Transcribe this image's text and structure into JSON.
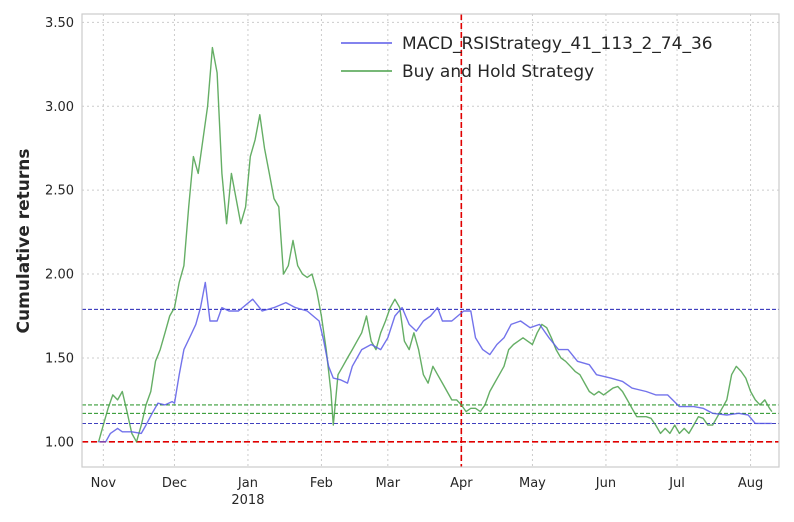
{
  "chart_data": {
    "type": "line",
    "ylabel": "Cumulative returns",
    "xlabel": "",
    "ylim": [
      0.85,
      3.55
    ],
    "x_range": [
      "2017-10-23",
      "2018-08-13"
    ],
    "x_ticks": [
      {
        "date": "2017-11-01",
        "label": "Nov"
      },
      {
        "date": "2017-12-01",
        "label": "Dec"
      },
      {
        "date": "2018-01-01",
        "label": "Jan",
        "sublabel": "2018"
      },
      {
        "date": "2018-02-01",
        "label": "Feb"
      },
      {
        "date": "2018-03-01",
        "label": "Mar"
      },
      {
        "date": "2018-04-01",
        "label": "Apr"
      },
      {
        "date": "2018-05-01",
        "label": "May"
      },
      {
        "date": "2018-06-01",
        "label": "Jun"
      },
      {
        "date": "2018-07-01",
        "label": "Jul"
      },
      {
        "date": "2018-08-01",
        "label": "Aug"
      }
    ],
    "y_ticks": [
      "1.00",
      "1.50",
      "2.00",
      "2.50",
      "3.00",
      "3.50"
    ],
    "grid": true,
    "legend_position": "top-right",
    "series": [
      {
        "name": "MACD_RSIStrategy_41_113_2_74_36",
        "color": "#5a5ae8",
        "points": [
          [
            "2017-10-30",
            1.0
          ],
          [
            "2017-11-02",
            1.0
          ],
          [
            "2017-11-04",
            1.05
          ],
          [
            "2017-11-07",
            1.08
          ],
          [
            "2017-11-09",
            1.06
          ],
          [
            "2017-11-13",
            1.06
          ],
          [
            "2017-11-17",
            1.05
          ],
          [
            "2017-11-19",
            1.1
          ],
          [
            "2017-11-22",
            1.18
          ],
          [
            "2017-11-24",
            1.23
          ],
          [
            "2017-11-27",
            1.22
          ],
          [
            "2017-11-30",
            1.24
          ],
          [
            "2017-12-01",
            1.23
          ],
          [
            "2017-12-03",
            1.4
          ],
          [
            "2017-12-05",
            1.55
          ],
          [
            "2017-12-08",
            1.64
          ],
          [
            "2017-12-10",
            1.7
          ],
          [
            "2017-12-12",
            1.8
          ],
          [
            "2017-12-14",
            1.95
          ],
          [
            "2017-12-16",
            1.72
          ],
          [
            "2017-12-19",
            1.72
          ],
          [
            "2017-12-21",
            1.8
          ],
          [
            "2017-12-24",
            1.78
          ],
          [
            "2017-12-28",
            1.78
          ],
          [
            "2018-01-03",
            1.85
          ],
          [
            "2018-01-07",
            1.78
          ],
          [
            "2018-01-12",
            1.8
          ],
          [
            "2018-01-17",
            1.83
          ],
          [
            "2018-01-21",
            1.8
          ],
          [
            "2018-01-26",
            1.78
          ],
          [
            "2018-01-31",
            1.72
          ],
          [
            "2018-02-02",
            1.6
          ],
          [
            "2018-02-04",
            1.45
          ],
          [
            "2018-02-06",
            1.38
          ],
          [
            "2018-02-09",
            1.37
          ],
          [
            "2018-02-12",
            1.35
          ],
          [
            "2018-02-14",
            1.45
          ],
          [
            "2018-02-18",
            1.55
          ],
          [
            "2018-02-22",
            1.58
          ],
          [
            "2018-02-26",
            1.55
          ],
          [
            "2018-03-01",
            1.62
          ],
          [
            "2018-03-04",
            1.75
          ],
          [
            "2018-03-07",
            1.8
          ],
          [
            "2018-03-10",
            1.7
          ],
          [
            "2018-03-13",
            1.66
          ],
          [
            "2018-03-16",
            1.72
          ],
          [
            "2018-03-19",
            1.75
          ],
          [
            "2018-03-22",
            1.8
          ],
          [
            "2018-03-24",
            1.72
          ],
          [
            "2018-03-28",
            1.72
          ],
          [
            "2018-04-02",
            1.78
          ],
          [
            "2018-04-05",
            1.78
          ],
          [
            "2018-04-07",
            1.62
          ],
          [
            "2018-04-10",
            1.55
          ],
          [
            "2018-04-13",
            1.52
          ],
          [
            "2018-04-16",
            1.58
          ],
          [
            "2018-04-19",
            1.62
          ],
          [
            "2018-04-22",
            1.7
          ],
          [
            "2018-04-26",
            1.72
          ],
          [
            "2018-04-30",
            1.68
          ],
          [
            "2018-05-04",
            1.7
          ],
          [
            "2018-05-08",
            1.62
          ],
          [
            "2018-05-12",
            1.55
          ],
          [
            "2018-05-16",
            1.55
          ],
          [
            "2018-05-20",
            1.48
          ],
          [
            "2018-05-25",
            1.46
          ],
          [
            "2018-05-28",
            1.4
          ],
          [
            "2018-06-03",
            1.38
          ],
          [
            "2018-06-08",
            1.36
          ],
          [
            "2018-06-12",
            1.32
          ],
          [
            "2018-06-18",
            1.3
          ],
          [
            "2018-06-22",
            1.28
          ],
          [
            "2018-06-27",
            1.28
          ],
          [
            "2018-07-02",
            1.21
          ],
          [
            "2018-07-08",
            1.21
          ],
          [
            "2018-07-12",
            1.2
          ],
          [
            "2018-07-16",
            1.17
          ],
          [
            "2018-07-22",
            1.16
          ],
          [
            "2018-07-27",
            1.17
          ],
          [
            "2018-07-31",
            1.16
          ],
          [
            "2018-08-03",
            1.11
          ],
          [
            "2018-08-07",
            1.11
          ],
          [
            "2018-08-10",
            1.11
          ]
        ]
      },
      {
        "name": "Buy and Hold Strategy",
        "color": "#4aa04a",
        "points": [
          [
            "2017-10-30",
            1.0
          ],
          [
            "2017-11-01",
            1.1
          ],
          [
            "2017-11-03",
            1.2
          ],
          [
            "2017-11-05",
            1.28
          ],
          [
            "2017-11-07",
            1.25
          ],
          [
            "2017-11-09",
            1.3
          ],
          [
            "2017-11-11",
            1.18
          ],
          [
            "2017-11-13",
            1.05
          ],
          [
            "2017-11-15",
            1.0
          ],
          [
            "2017-11-17",
            1.1
          ],
          [
            "2017-11-19",
            1.22
          ],
          [
            "2017-11-21",
            1.3
          ],
          [
            "2017-11-23",
            1.48
          ],
          [
            "2017-11-25",
            1.55
          ],
          [
            "2017-11-27",
            1.65
          ],
          [
            "2017-11-29",
            1.75
          ],
          [
            "2017-12-01",
            1.8
          ],
          [
            "2017-12-03",
            1.95
          ],
          [
            "2017-12-05",
            2.05
          ],
          [
            "2017-12-07",
            2.4
          ],
          [
            "2017-12-09",
            2.7
          ],
          [
            "2017-12-11",
            2.6
          ],
          [
            "2017-12-13",
            2.8
          ],
          [
            "2017-12-15",
            3.0
          ],
          [
            "2017-12-17",
            3.35
          ],
          [
            "2017-12-19",
            3.2
          ],
          [
            "2017-12-21",
            2.6
          ],
          [
            "2017-12-23",
            2.3
          ],
          [
            "2017-12-25",
            2.6
          ],
          [
            "2017-12-27",
            2.45
          ],
          [
            "2017-12-29",
            2.3
          ],
          [
            "2017-12-31",
            2.4
          ],
          [
            "2018-01-02",
            2.7
          ],
          [
            "2018-01-04",
            2.8
          ],
          [
            "2018-01-06",
            2.95
          ],
          [
            "2018-01-08",
            2.75
          ],
          [
            "2018-01-10",
            2.6
          ],
          [
            "2018-01-12",
            2.45
          ],
          [
            "2018-01-14",
            2.4
          ],
          [
            "2018-01-16",
            2.0
          ],
          [
            "2018-01-18",
            2.05
          ],
          [
            "2018-01-20",
            2.2
          ],
          [
            "2018-01-22",
            2.05
          ],
          [
            "2018-01-24",
            2.0
          ],
          [
            "2018-01-26",
            1.98
          ],
          [
            "2018-01-28",
            2.0
          ],
          [
            "2018-01-30",
            1.9
          ],
          [
            "2018-02-01",
            1.75
          ],
          [
            "2018-02-03",
            1.55
          ],
          [
            "2018-02-05",
            1.3
          ],
          [
            "2018-02-06",
            1.1
          ],
          [
            "2018-02-08",
            1.4
          ],
          [
            "2018-02-10",
            1.45
          ],
          [
            "2018-02-12",
            1.5
          ],
          [
            "2018-02-14",
            1.55
          ],
          [
            "2018-02-16",
            1.6
          ],
          [
            "2018-02-18",
            1.65
          ],
          [
            "2018-02-20",
            1.75
          ],
          [
            "2018-02-22",
            1.6
          ],
          [
            "2018-02-24",
            1.55
          ],
          [
            "2018-02-26",
            1.65
          ],
          [
            "2018-02-28",
            1.72
          ],
          [
            "2018-03-02",
            1.8
          ],
          [
            "2018-03-04",
            1.85
          ],
          [
            "2018-03-06",
            1.8
          ],
          [
            "2018-03-08",
            1.6
          ],
          [
            "2018-03-10",
            1.55
          ],
          [
            "2018-03-12",
            1.65
          ],
          [
            "2018-03-14",
            1.55
          ],
          [
            "2018-03-16",
            1.4
          ],
          [
            "2018-03-18",
            1.35
          ],
          [
            "2018-03-20",
            1.45
          ],
          [
            "2018-03-22",
            1.4
          ],
          [
            "2018-03-24",
            1.35
          ],
          [
            "2018-03-26",
            1.3
          ],
          [
            "2018-03-28",
            1.25
          ],
          [
            "2018-03-30",
            1.25
          ],
          [
            "2018-04-01",
            1.22
          ],
          [
            "2018-04-03",
            1.18
          ],
          [
            "2018-04-05",
            1.2
          ],
          [
            "2018-04-07",
            1.2
          ],
          [
            "2018-04-09",
            1.18
          ],
          [
            "2018-04-11",
            1.22
          ],
          [
            "2018-04-13",
            1.3
          ],
          [
            "2018-04-15",
            1.35
          ],
          [
            "2018-04-17",
            1.4
          ],
          [
            "2018-04-19",
            1.45
          ],
          [
            "2018-04-21",
            1.55
          ],
          [
            "2018-04-23",
            1.58
          ],
          [
            "2018-04-25",
            1.6
          ],
          [
            "2018-04-27",
            1.62
          ],
          [
            "2018-04-29",
            1.6
          ],
          [
            "2018-05-01",
            1.58
          ],
          [
            "2018-05-03",
            1.65
          ],
          [
            "2018-05-05",
            1.7
          ],
          [
            "2018-05-07",
            1.68
          ],
          [
            "2018-05-09",
            1.62
          ],
          [
            "2018-05-11",
            1.55
          ],
          [
            "2018-05-13",
            1.5
          ],
          [
            "2018-05-15",
            1.48
          ],
          [
            "2018-05-17",
            1.45
          ],
          [
            "2018-05-19",
            1.42
          ],
          [
            "2018-05-21",
            1.4
          ],
          [
            "2018-05-23",
            1.35
          ],
          [
            "2018-05-25",
            1.3
          ],
          [
            "2018-05-27",
            1.28
          ],
          [
            "2018-05-29",
            1.3
          ],
          [
            "2018-05-31",
            1.28
          ],
          [
            "2018-06-02",
            1.3
          ],
          [
            "2018-06-04",
            1.32
          ],
          [
            "2018-06-06",
            1.33
          ],
          [
            "2018-06-08",
            1.3
          ],
          [
            "2018-06-10",
            1.25
          ],
          [
            "2018-06-12",
            1.2
          ],
          [
            "2018-06-14",
            1.15
          ],
          [
            "2018-06-16",
            1.15
          ],
          [
            "2018-06-18",
            1.15
          ],
          [
            "2018-06-20",
            1.14
          ],
          [
            "2018-06-22",
            1.1
          ],
          [
            "2018-06-24",
            1.05
          ],
          [
            "2018-06-26",
            1.08
          ],
          [
            "2018-06-28",
            1.05
          ],
          [
            "2018-06-30",
            1.1
          ],
          [
            "2018-07-02",
            1.05
          ],
          [
            "2018-07-04",
            1.08
          ],
          [
            "2018-07-06",
            1.05
          ],
          [
            "2018-07-08",
            1.1
          ],
          [
            "2018-07-10",
            1.15
          ],
          [
            "2018-07-12",
            1.14
          ],
          [
            "2018-07-14",
            1.1
          ],
          [
            "2018-07-16",
            1.1
          ],
          [
            "2018-07-18",
            1.15
          ],
          [
            "2018-07-20",
            1.2
          ],
          [
            "2018-07-22",
            1.25
          ],
          [
            "2018-07-24",
            1.4
          ],
          [
            "2018-07-26",
            1.45
          ],
          [
            "2018-07-28",
            1.42
          ],
          [
            "2018-07-30",
            1.38
          ],
          [
            "2018-08-01",
            1.3
          ],
          [
            "2018-08-03",
            1.25
          ],
          [
            "2018-08-05",
            1.22
          ],
          [
            "2018-08-07",
            1.25
          ],
          [
            "2018-08-09",
            1.2
          ],
          [
            "2018-08-10",
            1.18
          ]
        ]
      }
    ],
    "reference_lines": {
      "horizontal": [
        {
          "y": 1.0,
          "color": "#e00000",
          "style": "dashed-thick"
        },
        {
          "y": 1.79,
          "color": "#0000aa",
          "style": "dashed-thin"
        },
        {
          "y": 1.11,
          "color": "#0000aa",
          "style": "dashed-thin"
        },
        {
          "y": 1.22,
          "color": "#008000",
          "style": "dashed-thin"
        },
        {
          "y": 1.17,
          "color": "#008000",
          "style": "dashed-thin"
        }
      ],
      "vertical": [
        {
          "date": "2018-04-01",
          "color": "#e00000",
          "style": "dashed-thick"
        }
      ]
    }
  }
}
